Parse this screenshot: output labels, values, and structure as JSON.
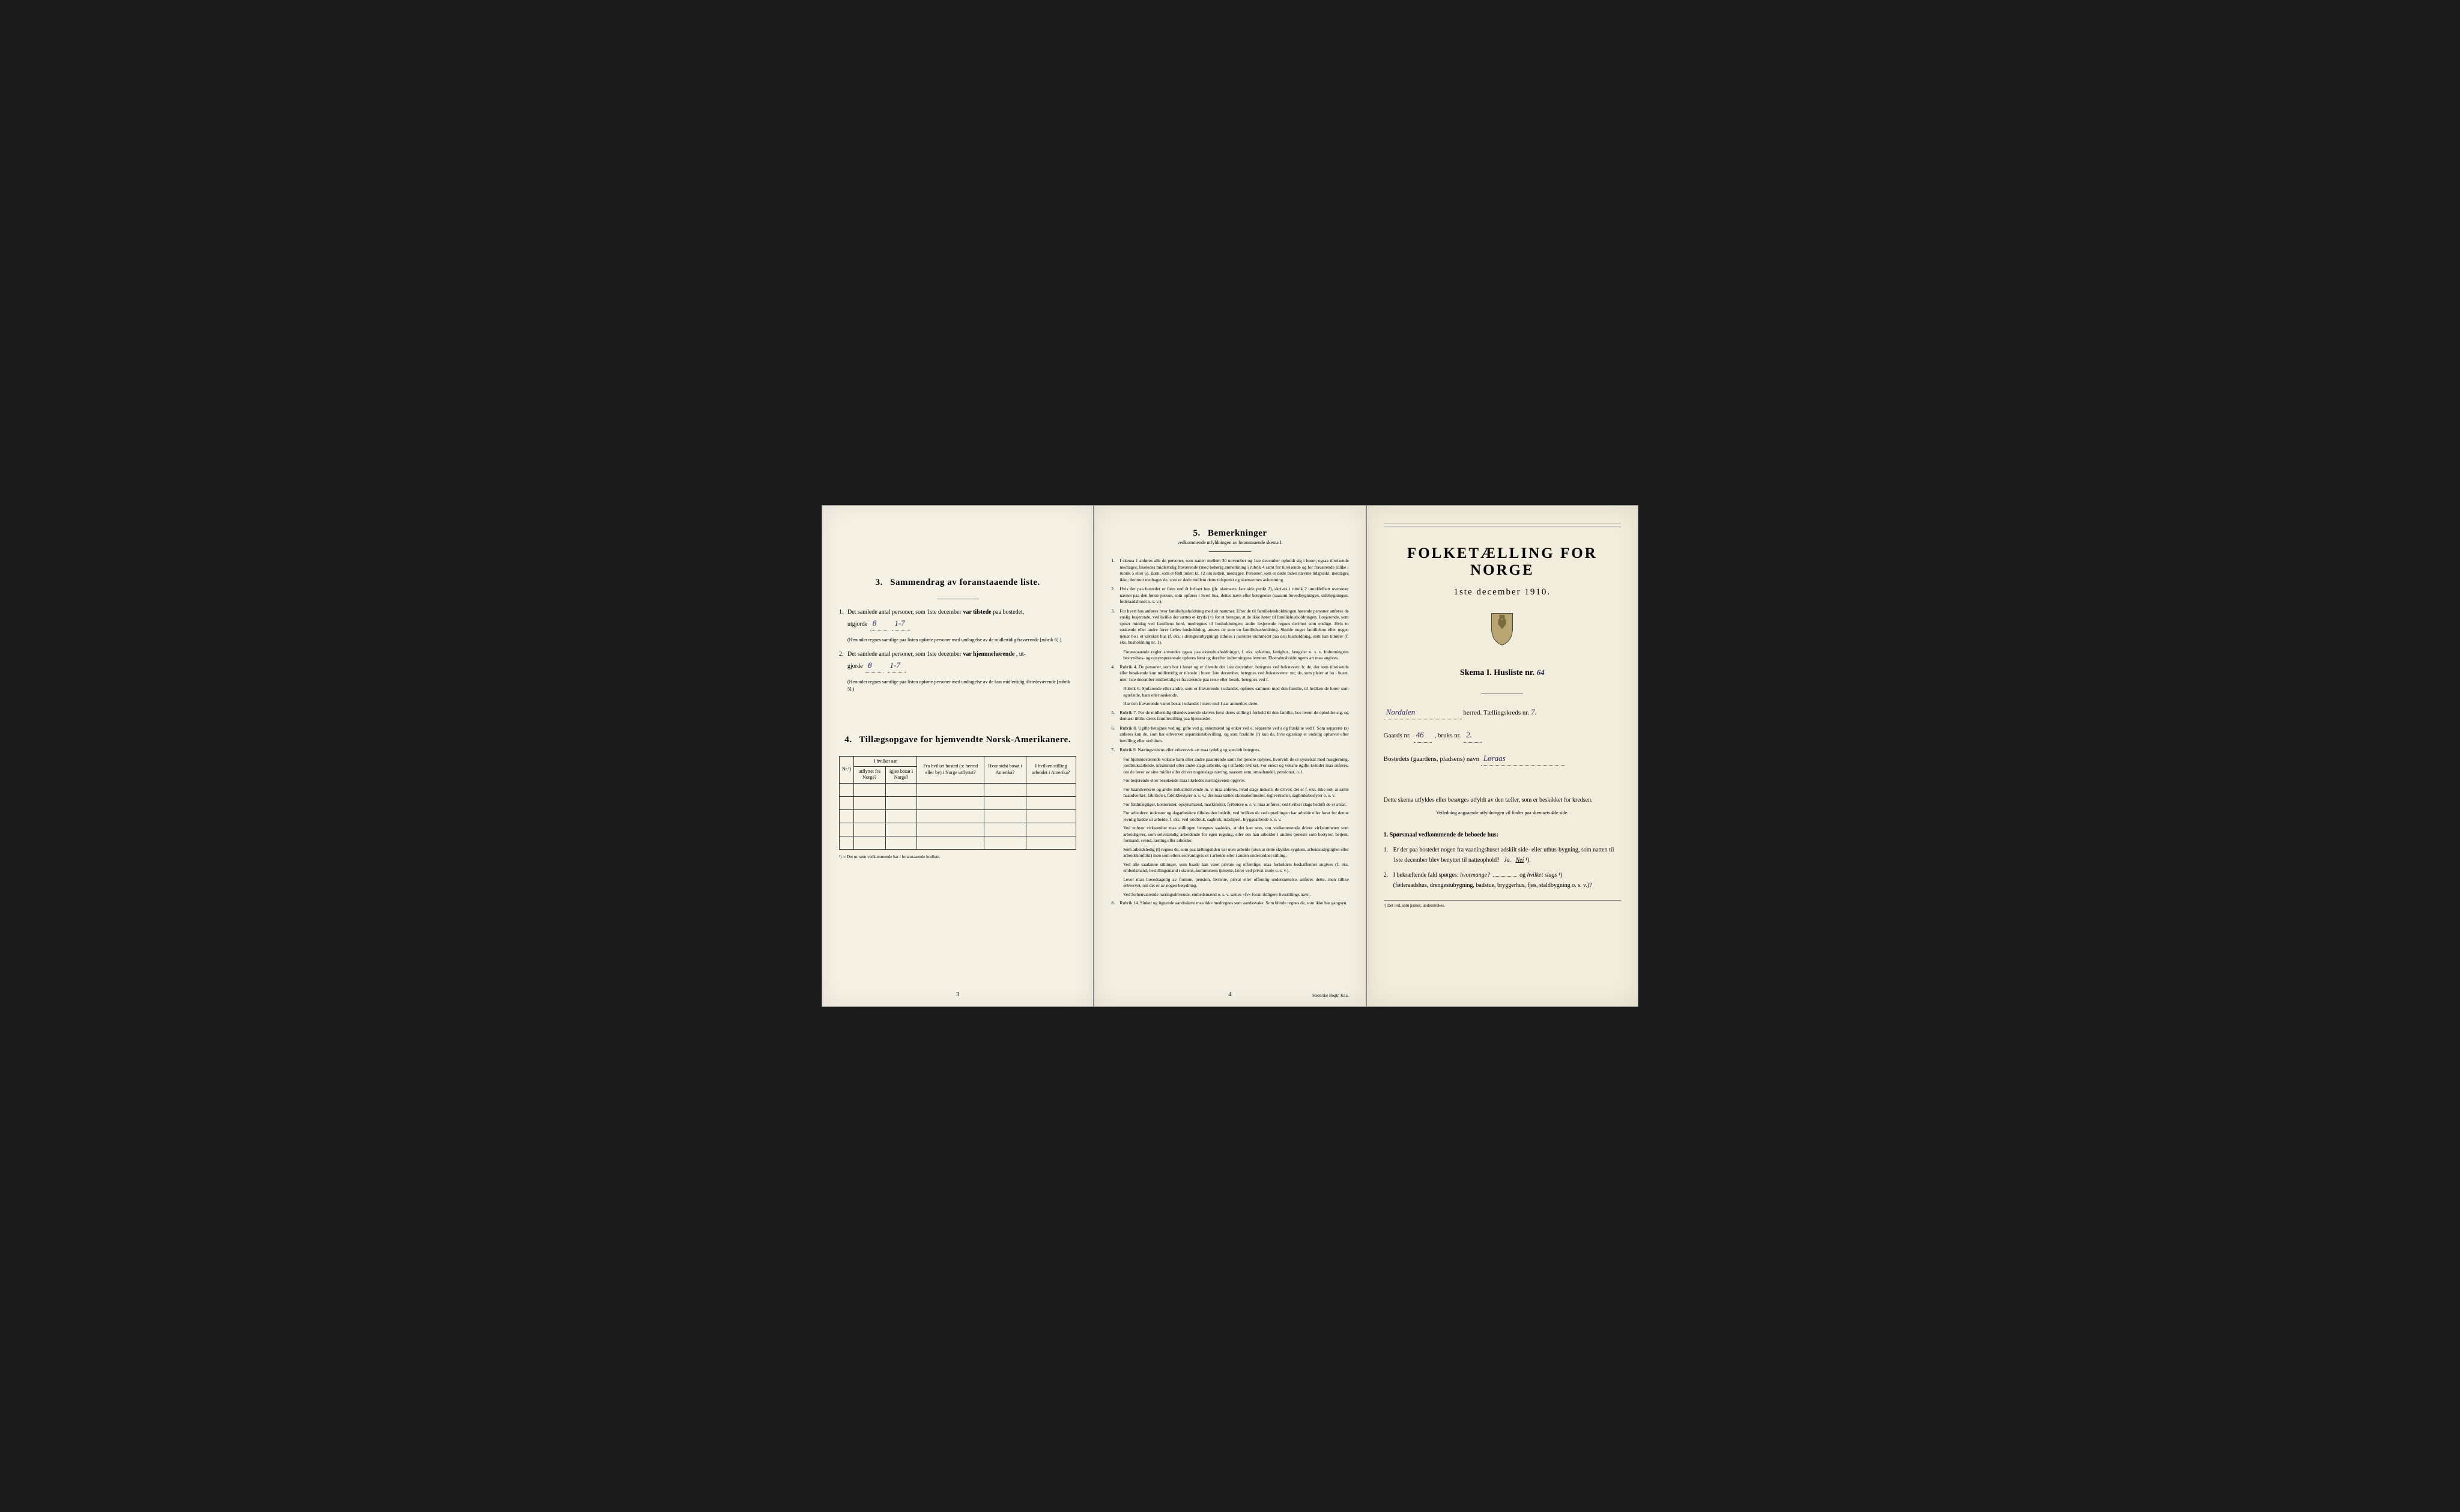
{
  "colors": {
    "page_bg_1": "#f5f1e5",
    "page_bg_2": "#f3efe2",
    "page_bg_3": "#f1ecdb",
    "text": "#1a1a1a",
    "handwriting": "#2a2a5a",
    "border": "#333333"
  },
  "typography": {
    "body_size_pt": 10,
    "fine_size_pt": 8,
    "title_size_pt": 25
  },
  "page1": {
    "section3": {
      "num": "3.",
      "title": "Sammendrag av foranstaaende liste.",
      "item1_num": "1.",
      "item1_text_a": "Det samlede antal personer, som 1ste december ",
      "item1_bold": "var tilstede",
      "item1_text_b": " paa bostedet,",
      "item1_line2": "utgjorde",
      "item1_value_struck": "8",
      "item1_value": "1-7",
      "item1_note": "(Herunder regnes samtlige paa listen opførte personer med undtagelse av de midlertidig fraværende [rubrik 6].)",
      "item2_num": "2.",
      "item2_text_a": "Det samlede antal personer, som 1ste december ",
      "item2_bold": "var hjemmehørende",
      "item2_text_b": ", ut-",
      "item2_line2": "gjorde",
      "item2_value_struck": "8",
      "item2_value": "1-7",
      "item2_note": "(Herunder regnes samtlige paa listen opførte personer med undtagelse av de kun midlertidig tilstedeværende [rubrik 5].)"
    },
    "section4": {
      "num": "4.",
      "title": "Tillægsopgave for hjemvendte Norsk-Amerikanere.",
      "headers": {
        "c1": "Nr.¹)",
        "c2_top": "I hvilket aar",
        "c2a": "utflyttet fra Norge?",
        "c2b": "igjen bosat i Norge?",
        "c3": "Fra hvilket bosted (ɔ: herred eller by) i Norge utflyttet?",
        "c4": "Hvor sidst bosat i Amerika?",
        "c5": "I hvilken stilling arbeidet i Amerika?"
      },
      "row_count": 5,
      "footnote": "¹) ɔ: Det nr. som vedkommende har i foranstaaende husliste."
    },
    "page_num": "3"
  },
  "page2": {
    "section5": {
      "num": "5.",
      "title": "Bemerkninger",
      "subtitle": "vedkommende utfyldningen av foranstaaende skema I.",
      "items": [
        {
          "n": "1.",
          "t": "I skema 1 anføres alle de personer, som natten mellem 30 november og 1ste december opholdt sig i huset; ogsaa tilreisende medtages; likeledes midlertidig fraværende (med behørig anmerkning i rubrik 4 samt for tilreisende og for fraværende tillike i rubrik 5 eller 6). Barn, som er født inden kl. 12 om natten, medtages. Personer, som er døde inden nævnte tidspunkt, medtages ikke; derimot medtages de, som er døde mellem dette tidspunkt og skemaernes avhentning."
        },
        {
          "n": "2.",
          "t": "Hvis der paa bostedet er flere end ét beboet hus (jfr. skemaets 1ste side punkt 2), skrives i rubrik 2 umiddelbart ovenover navnet paa den første person, som opføres i hvert hus, dettes navn eller betegnelse (saasom hovedbygningen, sidebygningen, føderaadshuset o. s. v.)."
        },
        {
          "n": "3.",
          "t": "For hvert hus anføres hver familiehusholdning med sit nummer. Efter de til familiehusholdningen hørende personer anføres de enslig losjerende, ved hvilke der sættes et kryds (×) for at betegne, at de ikke hører til familiehusholdningen. Losjerende, som spiser middag ved familiens bord, medregnes til husholdningen; andre losjerende regnes derimot som enslige. Hvis to søskende eller andre fører fælles husholdning, ansees de som en familiehusholdning. Skulde noget familielem eller nogen tjener bo i et særskilt hus (f. eks. i drengestubygning) tilføies i parentes nummeret paa den husholdning, som han tilhører (f. eks. husholdning nr. 1)."
        }
      ],
      "sub3": [
        "Foranstaaende regler anvendes ogsaa paa ekstrahusholdninger, f. eks. sykehus, fattighus, fængsler o. s. v. Indretningens bestyrelses- og opsynspersonale opføres først og derefter indretningens lemmer. Ekstrahusholdningens art maa angives."
      ],
      "items2": [
        {
          "n": "4.",
          "t": "Rubrik 4. De personer, som bor i huset og er tilstede der 1ste december, betegnes ved bokstaven: b; de, der som tilreisende eller besøkende kun midlertidig er tilstede i huset 1ste december, betegnes ved bokstaverne: mt; de, som pleier at bo i huset, men 1ste december midlertidig er fraværende paa reise eller besøk, betegnes ved f."
        }
      ],
      "sub4": [
        "Rubrik 6. Sjøfarende eller andre, som er fraværende i utlandet, opføres sammen med den familie, til hvilken de hører som egtefælle, barn eller søskende.",
        "Har den fraværende været bosat i utlandet i mere end 1 aar anmerkes dette."
      ],
      "items3": [
        {
          "n": "5.",
          "t": "Rubrik 7. For de midlertidig tilstedeværende skrives først deres stilling i forhold til den familie, hos hvem de opholder sig, og dernæst tillike deres familiestilling paa hjemstedet."
        },
        {
          "n": "6.",
          "t": "Rubrik 8. Ugifte betegnes ved ug, gifte ved g, enkemænd og enker ved e, separerte ved s og fraskilte ved f. Som separerte (s) anføres kun de, som har erhvervet separationsbevilling, og som fraskilte (f) kun de, hvis egteskap er endelig ophævet efter bevilling eller ved dom."
        },
        {
          "n": "7.",
          "t": "Rubrik 9. Næringsveiens eller erhvervets art maa tydelig og specielt betegnes."
        }
      ],
      "sub7": [
        "For hjemmeværende voksne barn eller andre paarørende samt for tjenere oplyses, hvorvidt de er sysselsat med husgjerning, jordbruksarbeide, kreaturstel eller andet slags arbeide, og i tilfælde hvilket. For enker og voksne ugifte kvinder maa anføres, om de lever av sine midler eller driver nogenslags næring, saasom søm, smaahandel, pensionat, o. l.",
        "For losjerende eller besøkende maa likeledes næringsveien opgives.",
        "For haandverkere og andre industridrivende m. v. maa anføres, hvad slags industri de driver; det er f. eks. ikke nok at sætte haandverker, fabrikeier, fabrikbestyrer o. s. v.; der maa sættes skomakermester, teglverkseier, sagbruksbestyrer o. s. v.",
        "For fuldmægtiger, kontorister, opsynsmænd, maskinister, fyrbøtere o. s. v. maa anføres, ved hvilket slags bedrift de er ansat.",
        "For arbeidere, inderster og dagarbeidere tilføies den bedrift, ved hvilken de ved optællingen har arbeide eller forut for denne jevnlig hadde sit arbeide, f. eks. ved jordbruk, sagbruk, træsliperi, bryggearbeide o. s. v.",
        "Ved enhver virksomhet maa stillingen betegnes saaledes, at det kan sees, om vedkommende driver virksomheten som arbeidsgiver, som selvstændig arbeidende for egen regning, eller om han arbeider i andres tjeneste som bestyrer, betjent, formand, svend, lærling eller arbeider.",
        "Som arbeidsledig (l) regnes de, som paa tællingstiden var uten arbeide (uten at dette skyldes sygdom, arbeidsudygtighet eller arbeidskonflikt) men som ellers sedvanligvis er i arbeide eller i anden underordnet stilling.",
        "Ved alle saadanne stillinger, som baade kan være private og offentlige, maa forholdets beskaffenhet angives (f. eks. embedsmand, bestillingsmand i statens, kommunens tjeneste, lærer ved privat skole o. s. v.).",
        "Lever man hovedsagelig av formue, pension, livrente, privat eller offentlig understøttelse, anføres dette, men tillike erhvervet, om det er av nogen betydning.",
        "Ved forhenværende næringsdrivende, embedsmænd o. s. v. sættes «fv» foran tidligere livsstillings navn."
      ],
      "items4": [
        {
          "n": "8.",
          "t": "Rubrik 14. Sinker og lignende aandssløve maa ikke medregnes som aandssvake. Som blinde regnes de, som ikke har gangsyn."
        }
      ]
    },
    "page_num": "4",
    "printer": "Steen'ske Bogtr. Kr.a."
  },
  "page3": {
    "main_title": "FOLKETÆLLING FOR NORGE",
    "subtitle": "1ste december 1910.",
    "skema_label": "Skema I.   Husliste nr.",
    "husliste_nr": "64",
    "herred_value": "Nordalen",
    "herred_suffix": "herred.  Tællingskreds nr.",
    "kreds_nr": "7.",
    "gaards_label": "Gaards nr.",
    "gaards_nr": "46",
    "bruks_label": ", bruks nr.",
    "bruks_nr": "2.",
    "bosted_label": "Bostedets (gaardens, pladsens) navn",
    "bosted_value": "Løraas",
    "note": "Dette skema utfyldes eller besørges utfyldt av den tæller, som er beskikket for kredsen.",
    "note_small": "Veiledning angaaende utfyldningen vil findes paa skemaets 4de side.",
    "q_title_num": "1.",
    "q_title": "Spørsmaal vedkommende de beboede hus:",
    "q1_num": "1.",
    "q1": "Er der paa bostedet nogen fra vaaningshuset adskilt side- eller uthus-bygning, som natten til 1ste december blev benyttet til natteophold?",
    "q1_ja": "Ja.",
    "q1_nei": "Nei",
    "q1_sup": "¹).",
    "q2_num": "2.",
    "q2_a": "I bekræftende fald spørges: ",
    "q2_i1": "hvormange?",
    "q2_mid": "og ",
    "q2_i2": "hvilket slags",
    "q2_sup": "¹)",
    "q2_b": "(føderaadshus, drengestubygning, badstue, bryggerhus, fjøs, staldbygning o. s. v.)?",
    "footnote": "¹) Det ord, som passer, understrekes."
  }
}
